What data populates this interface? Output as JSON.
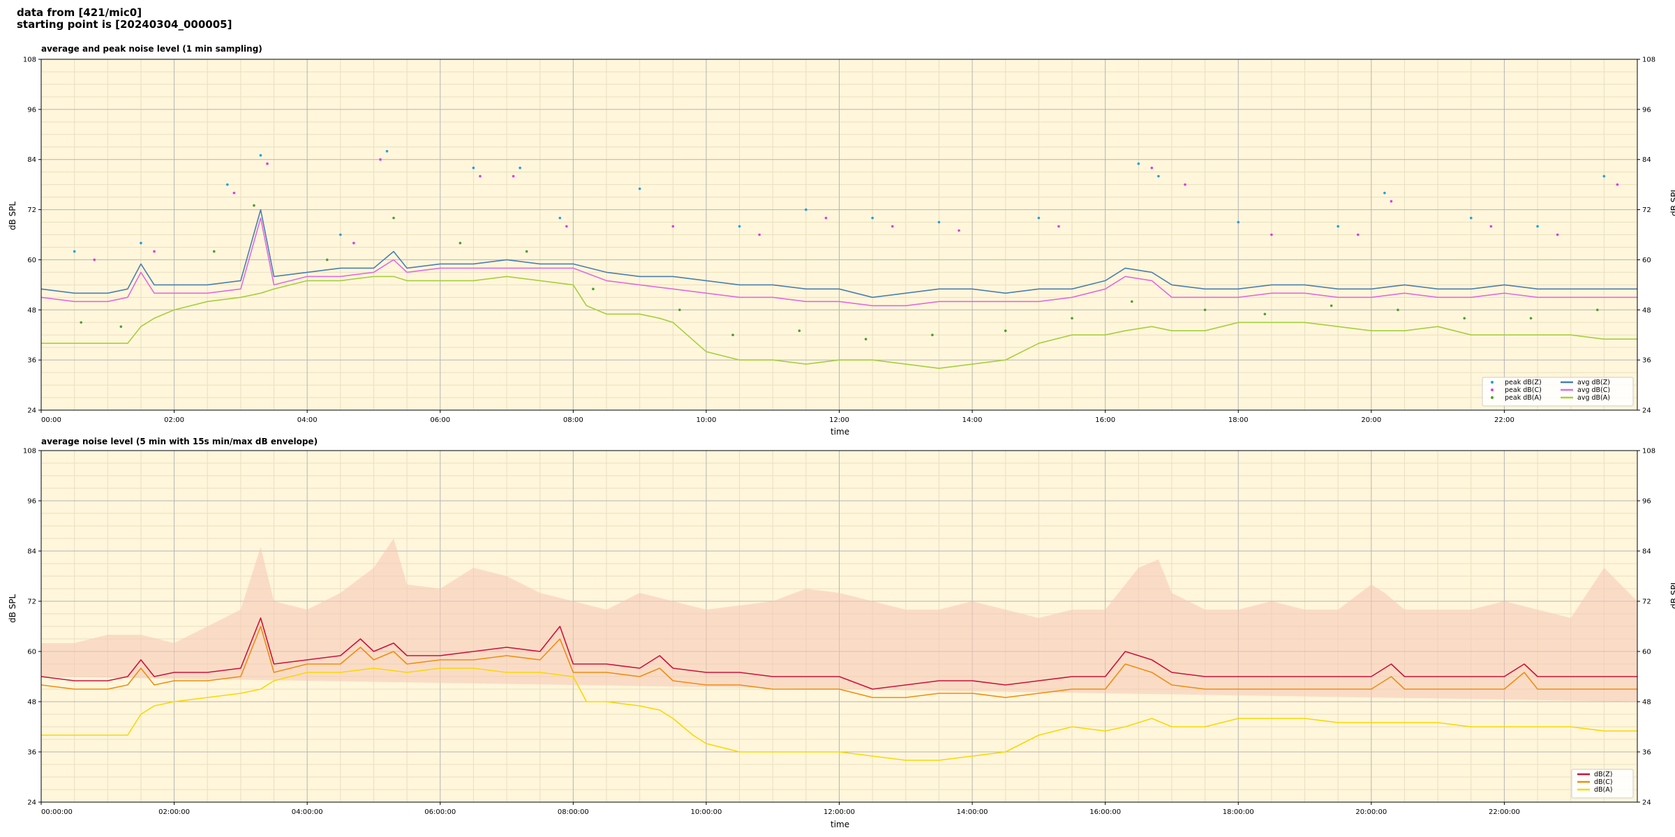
{
  "header": {
    "line1": "data from [421/mic0]",
    "line2": "starting point is [20240304_000005]"
  },
  "colors": {
    "plot_bg": "#fff6db",
    "grid_major": "#b4b4b4",
    "grid_minor": "#e9dfbf",
    "peak_Z": "#1f9fe0",
    "peak_C": "#e03be0",
    "peak_A": "#4aa02c",
    "avg_Z": "#4a7fb0",
    "avg_C": "#e06be0",
    "avg_A": "#a6cf3c",
    "env": "#f6c6b4",
    "dBZ": "#d0103a",
    "dBC": "#f08c10",
    "dBA": "#f8d800"
  },
  "chart_data": [
    {
      "type": "line",
      "title": "average and peak noise level (1 min sampling)",
      "xlabel": "time",
      "ylabel": "dB SPL",
      "ylim": [
        24,
        108
      ],
      "xlim_hours": [
        0,
        24
      ],
      "y_ticks": [
        "24",
        "36",
        "48",
        "60",
        "72",
        "84",
        "96",
        "108"
      ],
      "x_ticks": [
        "00:00",
        "02:00",
        "04:00",
        "06:00",
        "08:00",
        "10:00",
        "12:00",
        "14:00",
        "16:00",
        "18:00",
        "20:00",
        "22:00"
      ],
      "grid": true,
      "legend_position": "bottom-right",
      "legend": [
        "peak dB(Z)",
        "peak dB(C)",
        "peak dB(A)",
        "avg dB(Z)",
        "avg dB(C)",
        "avg dB(A)"
      ],
      "series": [
        {
          "name": "avg dB(Z)",
          "style": "line",
          "x_hours": [
            0,
            0.5,
            1,
            1.3,
            1.5,
            1.7,
            2,
            2.5,
            3,
            3.3,
            3.5,
            4,
            4.5,
            5,
            5.3,
            5.5,
            6,
            6.5,
            7,
            7.5,
            8,
            8.5,
            9,
            9.5,
            10,
            10.5,
            11,
            11.5,
            12,
            12.5,
            13,
            13.5,
            14,
            14.5,
            15,
            15.5,
            16,
            16.3,
            16.7,
            17,
            17.5,
            18,
            18.5,
            19,
            19.5,
            20,
            20.5,
            21,
            21.5,
            22,
            22.5,
            23,
            23.5,
            24
          ],
          "values": [
            53,
            52,
            52,
            53,
            59,
            54,
            54,
            54,
            55,
            72,
            56,
            57,
            58,
            58,
            62,
            58,
            59,
            59,
            60,
            59,
            59,
            57,
            56,
            56,
            55,
            54,
            54,
            53,
            53,
            51,
            52,
            53,
            53,
            52,
            53,
            53,
            55,
            58,
            57,
            54,
            53,
            53,
            54,
            54,
            53,
            53,
            54,
            53,
            53,
            54,
            53,
            53,
            53,
            53
          ]
        },
        {
          "name": "avg dB(C)",
          "style": "line",
          "x_hours": [
            0,
            0.5,
            1,
            1.3,
            1.5,
            1.7,
            2,
            2.5,
            3,
            3.3,
            3.5,
            4,
            4.5,
            5,
            5.3,
            5.5,
            6,
            6.5,
            7,
            7.5,
            8,
            8.5,
            9,
            9.5,
            10,
            10.5,
            11,
            11.5,
            12,
            12.5,
            13,
            13.5,
            14,
            14.5,
            15,
            15.5,
            16,
            16.3,
            16.7,
            17,
            17.5,
            18,
            18.5,
            19,
            19.5,
            20,
            20.5,
            21,
            21.5,
            22,
            22.5,
            23,
            23.5,
            24
          ],
          "values": [
            51,
            50,
            50,
            51,
            57,
            52,
            52,
            52,
            53,
            70,
            54,
            56,
            56,
            57,
            60,
            57,
            58,
            58,
            58,
            58,
            58,
            55,
            54,
            53,
            52,
            51,
            51,
            50,
            50,
            49,
            49,
            50,
            50,
            50,
            50,
            51,
            53,
            56,
            55,
            51,
            51,
            51,
            52,
            52,
            51,
            51,
            52,
            51,
            51,
            52,
            51,
            51,
            51,
            51
          ]
        },
        {
          "name": "avg dB(A)",
          "style": "line",
          "x_hours": [
            0,
            0.5,
            1,
            1.3,
            1.5,
            1.7,
            2,
            2.5,
            3,
            3.3,
            3.5,
            4,
            4.5,
            5,
            5.3,
            5.5,
            6,
            6.5,
            7,
            7.5,
            8,
            8.2,
            8.5,
            9,
            9.3,
            9.5,
            10,
            10.5,
            11,
            11.5,
            12,
            12.5,
            13,
            13.5,
            14,
            14.5,
            15,
            15.5,
            16,
            16.3,
            16.7,
            17,
            17.5,
            18,
            18.5,
            19,
            19.5,
            20,
            20.5,
            21,
            21.5,
            22,
            22.5,
            23,
            23.5,
            24
          ],
          "values": [
            40,
            40,
            40,
            40,
            44,
            46,
            48,
            50,
            51,
            52,
            53,
            55,
            55,
            56,
            56,
            55,
            55,
            55,
            56,
            55,
            54,
            49,
            47,
            47,
            46,
            45,
            38,
            36,
            36,
            35,
            36,
            36,
            35,
            34,
            35,
            36,
            40,
            42,
            42,
            43,
            44,
            43,
            43,
            45,
            45,
            45,
            44,
            43,
            43,
            44,
            42,
            42,
            42,
            42,
            41,
            41
          ]
        },
        {
          "name": "peak dB(Z)",
          "style": "scatter",
          "x_hours": [
            0.5,
            1.5,
            2.8,
            3.3,
            4.5,
            5.2,
            6.5,
            7.2,
            7.8,
            9,
            10.5,
            11.5,
            12.5,
            13.5,
            15,
            16.5,
            16.8,
            18,
            19.5,
            20.2,
            21.5,
            22.5,
            23.5
          ],
          "values": [
            62,
            64,
            78,
            85,
            66,
            86,
            82,
            82,
            70,
            77,
            68,
            72,
            70,
            69,
            70,
            83,
            80,
            69,
            68,
            76,
            70,
            68,
            80
          ]
        },
        {
          "name": "peak dB(C)",
          "style": "scatter",
          "x_hours": [
            0.8,
            1.7,
            2.9,
            3.4,
            4.7,
            5.1,
            6.6,
            7.1,
            7.9,
            9.5,
            10.8,
            11.8,
            12.8,
            13.8,
            15.3,
            16.7,
            17.2,
            18.5,
            19.8,
            20.3,
            21.8,
            22.8,
            23.7
          ],
          "values": [
            60,
            62,
            76,
            83,
            64,
            84,
            80,
            80,
            68,
            68,
            66,
            70,
            68,
            67,
            68,
            82,
            78,
            66,
            66,
            74,
            68,
            66,
            78
          ]
        },
        {
          "name": "peak dB(A)",
          "style": "scatter",
          "x_hours": [
            0.6,
            1.2,
            2.6,
            3.2,
            4.3,
            5.3,
            6.3,
            7.3,
            8.3,
            9.6,
            10.4,
            11.4,
            12.4,
            13.4,
            14.5,
            15.5,
            16.4,
            17.5,
            18.4,
            19.4,
            20.4,
            21.4,
            22.4,
            23.4
          ],
          "values": [
            45,
            44,
            62,
            73,
            60,
            70,
            64,
            62,
            53,
            48,
            42,
            43,
            41,
            42,
            43,
            46,
            50,
            48,
            47,
            49,
            48,
            46,
            46,
            48
          ]
        }
      ]
    },
    {
      "type": "line",
      "title": "average noise level (5 min with 15s min/max dB envelope)",
      "xlabel": "time",
      "ylabel": "dB SPL",
      "ylim": [
        24,
        108
      ],
      "xlim_hours": [
        0,
        24
      ],
      "y_ticks": [
        "24",
        "36",
        "48",
        "60",
        "72",
        "84",
        "96",
        "108"
      ],
      "x_ticks": [
        "00:00:00",
        "02:00:00",
        "04:00:00",
        "06:00:00",
        "08:00:00",
        "10:00:00",
        "12:00:00",
        "14:00:00",
        "16:00:00",
        "18:00:00",
        "20:00:00",
        "22:00:00"
      ],
      "grid": true,
      "legend_position": "bottom-right",
      "legend": [
        "dB(Z)",
        "dB(C)",
        "dB(A)"
      ],
      "series": [
        {
          "name": "dB(Z)",
          "style": "line",
          "x_hours": [
            0,
            0.5,
            1,
            1.3,
            1.5,
            1.7,
            2,
            2.5,
            3,
            3.3,
            3.5,
            4,
            4.5,
            4.8,
            5,
            5.3,
            5.5,
            6,
            6.5,
            7,
            7.5,
            7.8,
            8,
            8.5,
            9,
            9.3,
            9.5,
            10,
            10.5,
            11,
            11.5,
            12,
            12.5,
            13,
            13.5,
            14,
            14.5,
            15,
            15.5,
            16,
            16.3,
            16.7,
            17,
            17.5,
            18,
            18.5,
            19,
            19.5,
            20,
            20.3,
            20.5,
            21,
            21.5,
            22,
            22.3,
            22.5,
            23,
            23.5,
            24
          ],
          "values": [
            54,
            53,
            53,
            54,
            58,
            54,
            55,
            55,
            56,
            68,
            57,
            58,
            59,
            63,
            60,
            62,
            59,
            59,
            60,
            61,
            60,
            66,
            57,
            57,
            56,
            59,
            56,
            55,
            55,
            54,
            54,
            54,
            51,
            52,
            53,
            53,
            52,
            53,
            54,
            54,
            60,
            58,
            55,
            54,
            54,
            54,
            54,
            54,
            54,
            57,
            54,
            54,
            54,
            54,
            57,
            54,
            54,
            54,
            54
          ]
        },
        {
          "name": "dB(C)",
          "style": "line",
          "x_hours": [
            0,
            0.5,
            1,
            1.3,
            1.5,
            1.7,
            2,
            2.5,
            3,
            3.3,
            3.5,
            4,
            4.5,
            4.8,
            5,
            5.3,
            5.5,
            6,
            6.5,
            7,
            7.5,
            7.8,
            8,
            8.5,
            9,
            9.3,
            9.5,
            10,
            10.5,
            11,
            11.5,
            12,
            12.5,
            13,
            13.5,
            14,
            14.5,
            15,
            15.5,
            16,
            16.3,
            16.7,
            17,
            17.5,
            18,
            18.5,
            19,
            19.5,
            20,
            20.3,
            20.5,
            21,
            21.5,
            22,
            22.3,
            22.5,
            23,
            23.5,
            24
          ],
          "values": [
            52,
            51,
            51,
            52,
            56,
            52,
            53,
            53,
            54,
            66,
            55,
            57,
            57,
            61,
            58,
            60,
            57,
            58,
            58,
            59,
            58,
            63,
            55,
            55,
            54,
            56,
            53,
            52,
            52,
            51,
            51,
            51,
            49,
            49,
            50,
            50,
            49,
            50,
            51,
            51,
            57,
            55,
            52,
            51,
            51,
            51,
            51,
            51,
            51,
            54,
            51,
            51,
            51,
            51,
            55,
            51,
            51,
            51,
            51
          ]
        },
        {
          "name": "dB(A)",
          "style": "line",
          "x_hours": [
            0,
            0.5,
            1,
            1.3,
            1.5,
            1.7,
            2,
            2.5,
            3,
            3.3,
            3.5,
            4,
            4.5,
            5,
            5.5,
            6,
            6.5,
            7,
            7.5,
            8,
            8.2,
            8.5,
            9,
            9.3,
            9.5,
            9.8,
            10,
            10.5,
            11,
            11.5,
            12,
            12.5,
            13,
            13.5,
            14,
            14.5,
            15,
            15.5,
            16,
            16.3,
            16.7,
            17,
            17.5,
            18,
            18.5,
            19,
            19.5,
            20,
            20.5,
            21,
            21.5,
            22,
            22.5,
            23,
            23.5,
            24
          ],
          "values": [
            40,
            40,
            40,
            40,
            45,
            47,
            48,
            49,
            50,
            51,
            53,
            55,
            55,
            56,
            55,
            56,
            56,
            55,
            55,
            54,
            48,
            48,
            47,
            46,
            44,
            40,
            38,
            36,
            36,
            36,
            36,
            35,
            34,
            34,
            35,
            36,
            40,
            42,
            41,
            42,
            44,
            42,
            42,
            44,
            44,
            44,
            43,
            43,
            43,
            43,
            42,
            42,
            42,
            42,
            41,
            41
          ]
        },
        {
          "name": "envelope max",
          "style": "area",
          "x_hours": [
            0,
            0.5,
            1,
            1.5,
            2,
            2.5,
            3,
            3.3,
            3.5,
            4,
            4.5,
            5,
            5.3,
            5.5,
            6,
            6.5,
            7,
            7.5,
            8,
            8.5,
            9,
            9.5,
            10,
            10.5,
            11,
            11.5,
            12,
            12.5,
            13,
            13.5,
            14,
            14.5,
            15,
            15.5,
            16,
            16.5,
            16.8,
            17,
            17.5,
            18,
            18.5,
            19,
            19.5,
            20,
            20.2,
            20.5,
            21,
            21.5,
            22,
            22.5,
            23,
            23.5,
            24
          ],
          "values": [
            62,
            62,
            64,
            64,
            62,
            66,
            70,
            85,
            72,
            70,
            74,
            80,
            87,
            76,
            75,
            80,
            78,
            74,
            72,
            70,
            74,
            72,
            70,
            71,
            72,
            75,
            74,
            72,
            70,
            70,
            72,
            70,
            68,
            70,
            70,
            80,
            82,
            74,
            70,
            70,
            72,
            70,
            70,
            76,
            74,
            70,
            70,
            70,
            72,
            70,
            68,
            80,
            72
          ]
        }
      ]
    }
  ]
}
